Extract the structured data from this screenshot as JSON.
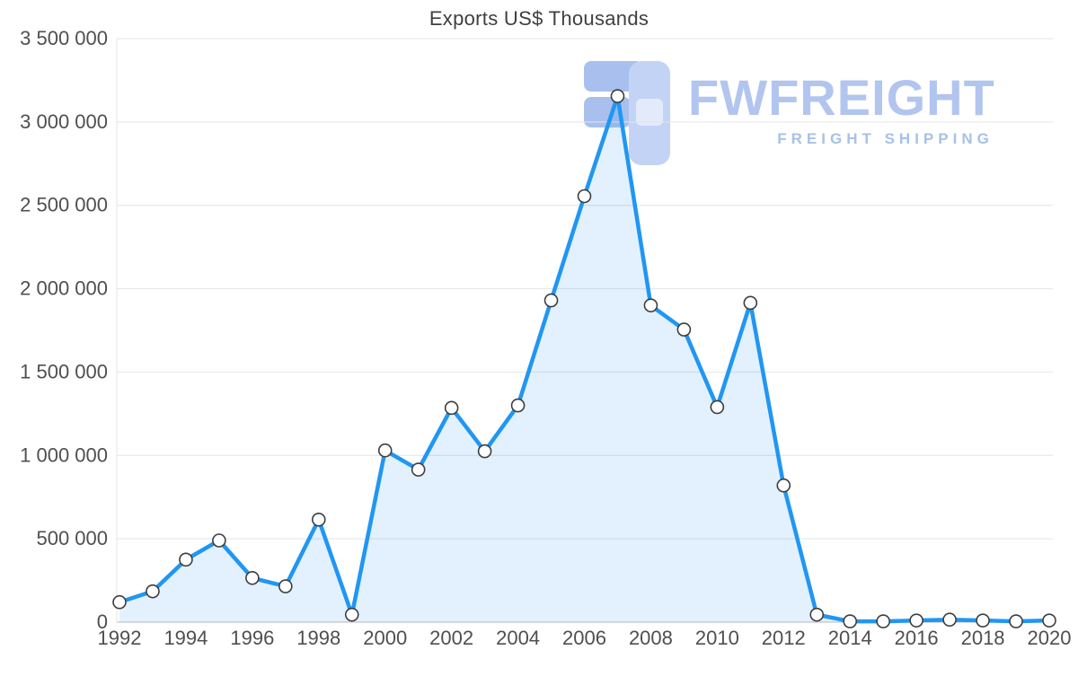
{
  "title": "Exports US$ Thousands",
  "watermark": {
    "brand": "FWFREIGHT",
    "tagline": "FREIGHT SHIPPING"
  },
  "colors": {
    "line": "#2196f3",
    "area_fill": "rgba(33, 150, 243, 0.13)",
    "marker_fill": "#ffffff",
    "marker_stroke": "#3d3d3d",
    "grid": "#e4e4e4",
    "axis": "#bdbdbd",
    "tick_text": "#4f4f4f",
    "watermark_primary": "#a9c0ee",
    "watermark_secondary": "#c2d3f5"
  },
  "chart_data": {
    "type": "line",
    "title": "Exports US$ Thousands",
    "xlabel": "",
    "ylabel": "",
    "grid": true,
    "legend": false,
    "area_fill": true,
    "markers": true,
    "ylim": [
      0,
      3500000
    ],
    "x": [
      1992,
      1993,
      1994,
      1995,
      1996,
      1997,
      1998,
      1999,
      2000,
      2001,
      2002,
      2003,
      2004,
      2005,
      2006,
      2007,
      2008,
      2009,
      2010,
      2011,
      2012,
      2013,
      2014,
      2015,
      2016,
      2017,
      2018,
      2019,
      2020
    ],
    "values": [
      120000,
      185000,
      375000,
      490000,
      265000,
      215000,
      615000,
      45000,
      1030000,
      915000,
      1285000,
      1025000,
      1300000,
      1930000,
      2555000,
      3155000,
      1900000,
      1755000,
      1290000,
      1915000,
      820000,
      45000,
      5000,
      5000,
      10000,
      15000,
      10000,
      5000,
      10000
    ],
    "y_ticks": [
      0,
      500000,
      1000000,
      1500000,
      2000000,
      2500000,
      3000000,
      3500000
    ],
    "y_tick_labels": [
      "0",
      "500 000",
      "1 000 000",
      "1 500 000",
      "2 000 000",
      "2 500 000",
      "3 000 000",
      "3 500 000"
    ],
    "x_tick_labels": [
      "1992",
      "1994",
      "1996",
      "1998",
      "2000",
      "2002",
      "2004",
      "2006",
      "2008",
      "2010",
      "2012",
      "2014",
      "2016",
      "2018",
      "2020"
    ],
    "x_tick_step": 2
  }
}
